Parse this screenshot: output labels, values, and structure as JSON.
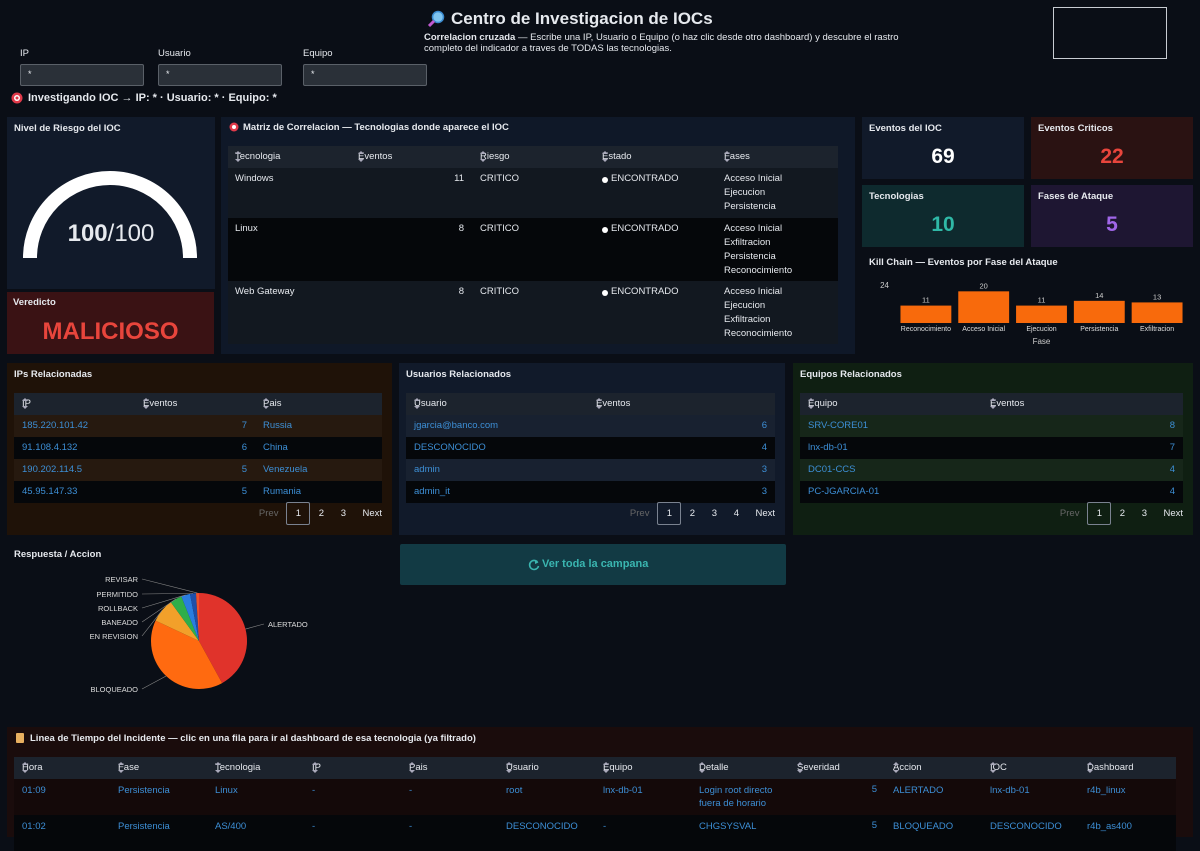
{
  "header": {
    "title": "Centro de Investigacion de IOCs",
    "subtitle_bold": "Correlacion cruzada",
    "subtitle": " — Escribe una IP, Usuario o Equipo (o haz clic desde otro dashboard) y descubre el rastro completo del indicador a traves de TODAS las tecnologias."
  },
  "filters": [
    {
      "label": "IP",
      "value": "*"
    },
    {
      "label": "Usuario",
      "value": "*"
    },
    {
      "label": "Equipo",
      "value": "*"
    }
  ],
  "investigating": "Investigando IOC → IP: * · Usuario: * · Equipo: *",
  "risk": {
    "title": "Nivel de Riesgo del IOC",
    "score": 100,
    "max_label": "/100",
    "range": [
      0,
      100
    ]
  },
  "verdict": {
    "title": "Veredicto",
    "value": "MALICIOSO"
  },
  "matrix": {
    "title": "Matriz de Correlacion — Tecnologias donde aparece el IOC",
    "columns": [
      "Tecnologia",
      "Eventos",
      "Riesgo",
      "Estado",
      "Fases"
    ],
    "rows": [
      [
        "Windows",
        11,
        "CRITICO",
        "ENCONTRADO",
        [
          "Acceso Inicial",
          "Ejecucion",
          "Persistencia"
        ]
      ],
      [
        "Linux",
        8,
        "CRITICO",
        "ENCONTRADO",
        [
          "Acceso Inicial",
          "Exfiltracion",
          "Persistencia",
          "Reconocimiento"
        ]
      ],
      [
        "Web Gateway",
        8,
        "CRITICO",
        "ENCONTRADO",
        [
          "Acceso Inicial",
          "Ejecucion",
          "Exfiltracion",
          "Reconocimiento"
        ]
      ]
    ]
  },
  "kpis": [
    {
      "title": "Eventos del IOC",
      "value": 69,
      "color": "#ffffff"
    },
    {
      "title": "Eventos Criticos",
      "value": 22,
      "color": "#e8453c"
    },
    {
      "title": "Tecnologias",
      "value": 10,
      "color": "#2fb8a6"
    },
    {
      "title": "Fases de Ataque",
      "value": 5,
      "color": "#a066e8"
    }
  ],
  "kill_chain": {
    "type": "bar",
    "title": "Kill Chain — Eventos por Fase del Ataque",
    "x_label": "Fase",
    "categories": [
      "Reconocimiento",
      "Acceso Inicial",
      "Ejecucion",
      "Persistencia",
      "Exfiltracion"
    ],
    "values": [
      11,
      20,
      11,
      14,
      13
    ],
    "color": "#f86a0c",
    "ylim": [
      0,
      24
    ],
    "yticks": [
      24
    ]
  },
  "related": [
    {
      "title": "IPs Relacionadas",
      "columns": [
        "IP",
        "Eventos",
        "Pais"
      ],
      "rows": [
        [
          "185.220.101.42",
          7,
          "Russia"
        ],
        [
          "91.108.4.132",
          6,
          "China"
        ],
        [
          "190.202.114.5",
          5,
          "Venezuela"
        ],
        [
          "45.95.147.33",
          5,
          "Rumania"
        ]
      ],
      "prev": "Prev",
      "pages": [
        1,
        2,
        3
      ],
      "next": "Next"
    },
    {
      "title": "Usuarios Relacionados",
      "columns": [
        "Usuario",
        "Eventos"
      ],
      "rows": [
        [
          "jgarcia@banco.com",
          6
        ],
        [
          "DESCONOCIDO",
          4
        ],
        [
          "admin",
          3
        ],
        [
          "admin_it",
          3
        ]
      ],
      "prev": "Prev",
      "pages": [
        1,
        2,
        3,
        4
      ],
      "next": "Next"
    },
    {
      "title": "Equipos Relacionados",
      "columns": [
        "Equipo",
        "Eventos"
      ],
      "rows": [
        [
          "SRV-CORE01",
          8
        ],
        [
          "lnx-db-01",
          7
        ],
        [
          "DC01-CCS",
          4
        ],
        [
          "PC-JGARCIA-01",
          4
        ]
      ],
      "prev": "Prev",
      "pages": [
        1,
        2,
        3
      ],
      "next": "Next"
    }
  ],
  "response": {
    "type": "pie",
    "title": "Respuesta / Accion",
    "categories": [
      "ALERTADO",
      "BLOQUEADO",
      "EN REVISION",
      "BANEADO",
      "ROLLBACK",
      "PERMITIDO",
      "REVISAR"
    ],
    "values": [
      42,
      40,
      8,
      4,
      3,
      2,
      1
    ],
    "colors": [
      "#e0332b",
      "#ff6a10",
      "#f2a02a",
      "#2fae4a",
      "#2a7de0",
      "#1f4fa8",
      "#f0502a"
    ]
  },
  "campaign_button": "Ver toda la campana",
  "timeline": {
    "title": "Linea de Tiempo del Incidente — clic en una fila para ir al dashboard de esa tecnologia (ya filtrado)",
    "columns": [
      "Hora",
      "Fase",
      "Tecnologia",
      "IP",
      "Pais",
      "Usuario",
      "Equipo",
      "Detalle",
      "Severidad",
      "Accion",
      "IOC",
      "Dashboard"
    ],
    "rows": [
      [
        "01:09",
        "Persistencia",
        "Linux",
        "-",
        "-",
        "root",
        "lnx-db-01",
        "Login root directo fuera de horario",
        5,
        "ALERTADO",
        "lnx-db-01",
        "r4b_linux"
      ],
      [
        "01:02",
        "Persistencia",
        "AS/400",
        "-",
        "-",
        "DESCONOCIDO",
        "-",
        "CHGSYSVAL",
        5,
        "BLOQUEADO",
        "DESCONOCIDO",
        "r4b_as400"
      ]
    ]
  }
}
